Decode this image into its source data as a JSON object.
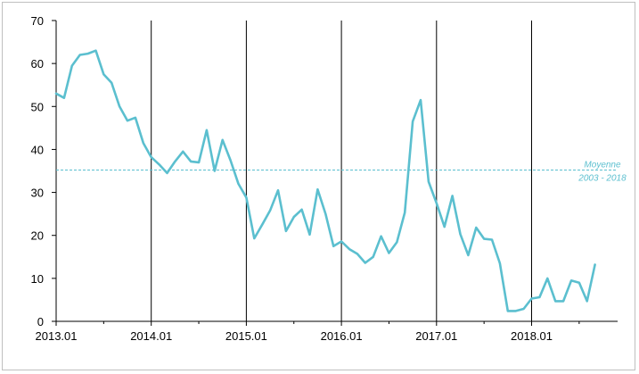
{
  "chart_data": {
    "type": "line",
    "title": "",
    "xlabel": "",
    "ylabel": "",
    "ylim": [
      0,
      70
    ],
    "yticks": [
      0,
      10,
      20,
      30,
      40,
      50,
      60,
      70
    ],
    "xticks": [
      "2013.01",
      "2014.01",
      "2015.01",
      "2016.01",
      "2017.01",
      "2018.01"
    ],
    "grid": "vertical lines at year starts",
    "series": [
      {
        "color": "#5bbfcf",
        "values": [
          [
            "2013-01",
            53.0
          ],
          [
            "2013-02",
            52.0
          ],
          [
            "2013-03",
            59.5
          ],
          [
            "2013-04",
            62.0
          ],
          [
            "2013-05",
            62.3
          ],
          [
            "2013-06",
            63.0
          ],
          [
            "2013-07",
            57.5
          ],
          [
            "2013-08",
            55.5
          ],
          [
            "2013-09",
            50.0
          ],
          [
            "2013-10",
            46.7
          ],
          [
            "2013-11",
            47.4
          ],
          [
            "2013-12",
            41.5
          ],
          [
            "2014-01",
            38.2
          ],
          [
            "2014-02",
            36.5
          ],
          [
            "2014-03",
            34.5
          ],
          [
            "2014-04",
            37.2
          ],
          [
            "2014-05",
            39.5
          ],
          [
            "2014-06",
            37.2
          ],
          [
            "2014-07",
            37.0
          ],
          [
            "2014-08",
            44.5
          ],
          [
            "2014-09",
            35.0
          ],
          [
            "2014-10",
            42.2
          ],
          [
            "2014-11",
            37.5
          ],
          [
            "2014-12",
            32.0
          ],
          [
            "2015-01",
            28.8
          ],
          [
            "2015-02",
            19.3
          ],
          [
            "2015-03",
            22.5
          ],
          [
            "2015-04",
            25.8
          ],
          [
            "2015-05",
            30.5
          ],
          [
            "2015-06",
            21.0
          ],
          [
            "2015-07",
            24.3
          ],
          [
            "2015-08",
            26.0
          ],
          [
            "2015-09",
            20.2
          ],
          [
            "2015-10",
            30.7
          ],
          [
            "2015-11",
            25.0
          ],
          [
            "2015-12",
            17.5
          ],
          [
            "2016-01",
            18.6
          ],
          [
            "2016-02",
            16.8
          ],
          [
            "2016-03",
            15.7
          ],
          [
            "2016-04",
            13.6
          ],
          [
            "2016-05",
            15.0
          ],
          [
            "2016-06",
            19.8
          ],
          [
            "2016-07",
            15.9
          ],
          [
            "2016-08",
            18.4
          ],
          [
            "2016-09",
            25.3
          ],
          [
            "2016-10",
            46.5
          ],
          [
            "2016-11",
            51.5
          ],
          [
            "2016-12",
            32.5
          ],
          [
            "2017-01",
            27.5
          ],
          [
            "2017-02",
            22.0
          ],
          [
            "2017-03",
            29.2
          ],
          [
            "2017-04",
            20.3
          ],
          [
            "2017-05",
            15.4
          ],
          [
            "2017-06",
            21.8
          ],
          [
            "2017-07",
            19.2
          ],
          [
            "2017-08",
            19.0
          ],
          [
            "2017-09",
            13.5
          ],
          [
            "2017-10",
            2.4
          ],
          [
            "2017-11",
            2.4
          ],
          [
            "2017-12",
            2.9
          ],
          [
            "2018-01",
            5.3
          ],
          [
            "2018-02",
            5.6
          ],
          [
            "2018-03",
            10.0
          ],
          [
            "2018-04",
            4.7
          ],
          [
            "2018-05",
            4.7
          ],
          [
            "2018-06",
            9.5
          ],
          [
            "2018-07",
            9.0
          ],
          [
            "2018-08",
            4.7
          ],
          [
            "2018-09",
            13.2
          ]
        ]
      }
    ],
    "reference_line": {
      "value": 35.2,
      "label_line1": "Moyenne",
      "label_line2": "2003 - 2018",
      "color": "#5bbfcf",
      "style": "dashed"
    }
  }
}
